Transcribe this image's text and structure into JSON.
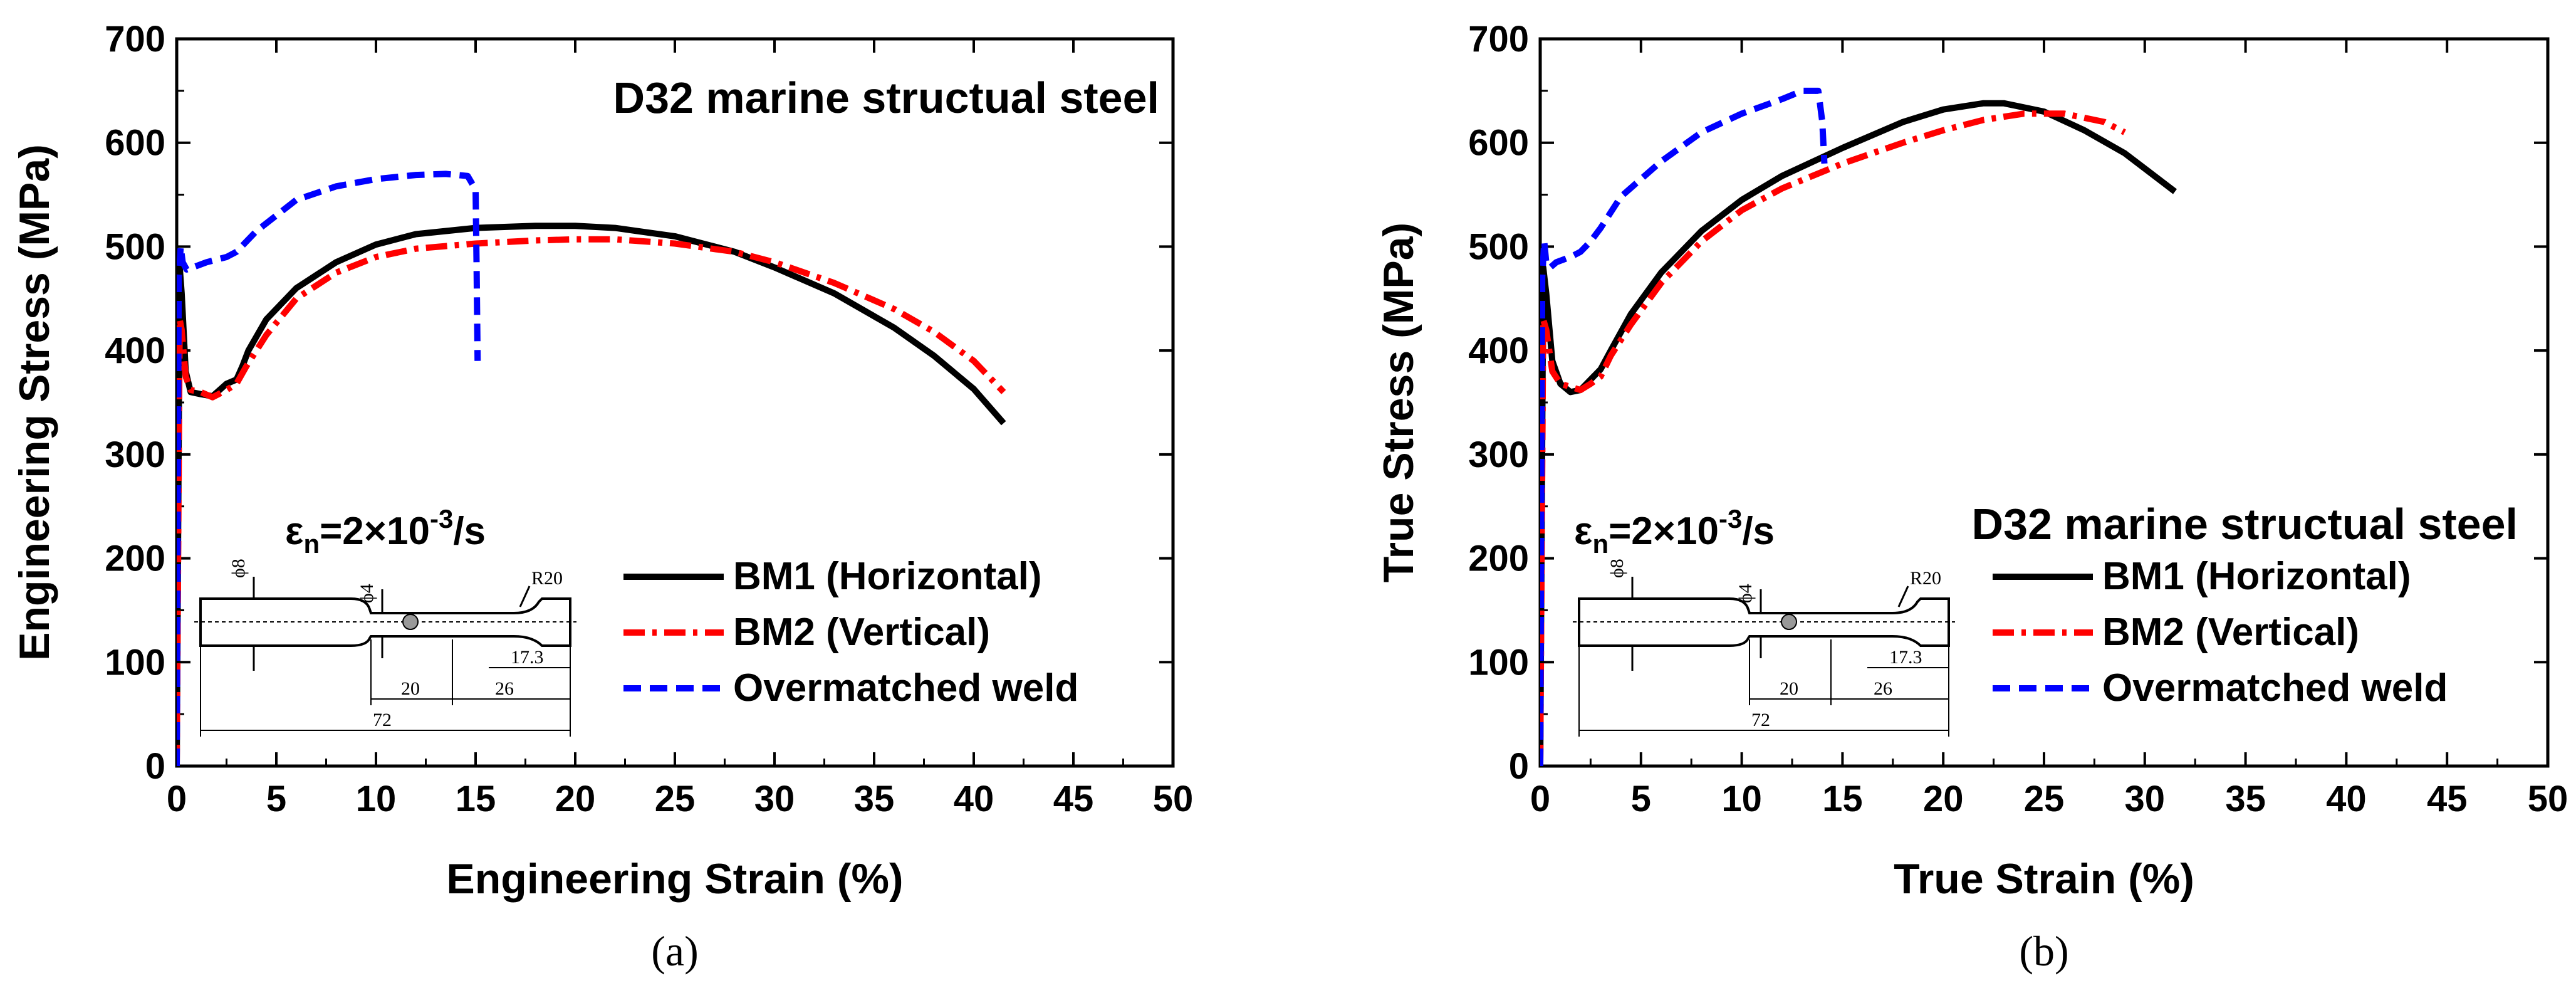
{
  "chart_data": [
    {
      "type": "line",
      "panel_label": "(a)",
      "title": "D32 marine structual steel",
      "xlabel": "Engineering Strain (%)",
      "ylabel": "Engineering Stress (MPa)",
      "xlim": [
        0,
        50
      ],
      "ylim": [
        0,
        700
      ],
      "xticks": [
        0,
        5,
        10,
        15,
        20,
        25,
        30,
        35,
        40,
        45,
        50
      ],
      "yticks": [
        0,
        100,
        200,
        300,
        400,
        500,
        600,
        700
      ],
      "strain_rate": {
        "base": "ε",
        "sub": "n",
        "mid": "=2×10",
        "sup": "-3",
        "tail": "/s"
      },
      "specimen_dims": {
        "d1": "ϕ8",
        "d2": "ϕ4",
        "radius": "R20",
        "l1": "17.3",
        "l2": "20",
        "l3": "26",
        "l4": "72"
      },
      "series": [
        {
          "name": "BM1 (Horizontal)",
          "color": "#000000",
          "dash": "solid",
          "x": [
            0,
            0.15,
            0.25,
            0.45,
            0.7,
            1.2,
            1.8,
            2.5,
            3.0,
            3.3,
            3.6,
            4.5,
            6,
            8,
            10,
            12,
            15,
            18,
            20,
            22,
            25,
            28,
            30,
            33,
            36,
            38,
            40,
            41.5
          ],
          "y": [
            0,
            480,
            455,
            380,
            360,
            358,
            356,
            368,
            372,
            385,
            400,
            430,
            460,
            485,
            502,
            512,
            518,
            520,
            520,
            518,
            510,
            495,
            480,
            455,
            422,
            395,
            363,
            330
          ]
        },
        {
          "name": "BM2 (Vertical)",
          "color": "#ff0000",
          "dash": "dashdot",
          "x": [
            0,
            0.15,
            0.25,
            0.45,
            0.7,
            1.2,
            1.8,
            2.5,
            3.0,
            3.5,
            4.5,
            6,
            8,
            10,
            12,
            15,
            18,
            20,
            22,
            25,
            28,
            30,
            33,
            36,
            38,
            40,
            41.5
          ],
          "y": [
            0,
            430,
            420,
            375,
            362,
            360,
            355,
            362,
            368,
            385,
            415,
            450,
            475,
            490,
            498,
            503,
            506,
            507,
            507,
            503,
            495,
            485,
            465,
            440,
            418,
            390,
            360
          ]
        },
        {
          "name": "Overmatched weld",
          "color": "#0000ff",
          "dash": "dashed",
          "x": [
            0,
            0.1,
            0.2,
            0.3,
            0.5,
            0.8,
            1.5,
            2.5,
            3,
            4,
            6,
            8,
            10,
            12,
            13.5,
            14.6,
            15.0,
            15.05,
            15.1
          ],
          "y": [
            0,
            470,
            500,
            485,
            478,
            480,
            485,
            490,
            495,
            515,
            545,
            558,
            565,
            569,
            570,
            568,
            555,
            480,
            390
          ]
        }
      ]
    },
    {
      "type": "line",
      "panel_label": "(b)",
      "title": "D32 marine structual steel",
      "xlabel": "True Strain (%)",
      "ylabel": "True Stress (MPa)",
      "xlim": [
        0,
        50
      ],
      "ylim": [
        0,
        700
      ],
      "xticks": [
        0,
        5,
        10,
        15,
        20,
        25,
        30,
        35,
        40,
        45,
        50
      ],
      "yticks": [
        0,
        100,
        200,
        300,
        400,
        500,
        600,
        700
      ],
      "strain_rate": {
        "base": "ε",
        "sub": "n",
        "mid": "=2×10",
        "sup": "-3",
        "tail": "/s"
      },
      "specimen_dims": {
        "d1": "ϕ8",
        "d2": "ϕ4",
        "radius": "R20",
        "l1": "17.3",
        "l2": "20",
        "l3": "26",
        "l4": "72"
      },
      "series": [
        {
          "name": "BM1 (Horizontal)",
          "color": "#000000",
          "dash": "solid",
          "x": [
            0,
            0.15,
            0.3,
            0.6,
            1.0,
            1.5,
            2.0,
            2.5,
            3.0,
            3.5,
            4.5,
            6,
            8,
            10,
            12,
            15,
            18,
            20,
            22,
            23,
            25,
            27,
            29,
            31.5
          ],
          "y": [
            0,
            480,
            455,
            390,
            368,
            360,
            362,
            372,
            382,
            400,
            435,
            475,
            515,
            545,
            568,
            595,
            620,
            632,
            638,
            638,
            630,
            612,
            590,
            553
          ]
        },
        {
          "name": "BM2 (Vertical)",
          "color": "#ff0000",
          "dash": "dashdot",
          "x": [
            0,
            0.15,
            0.3,
            0.6,
            1.0,
            1.5,
            2.0,
            2.5,
            3.0,
            3.5,
            4.5,
            6,
            8,
            10,
            12,
            15,
            18,
            20,
            22,
            24,
            26,
            28,
            29
          ],
          "y": [
            0,
            430,
            420,
            380,
            368,
            365,
            362,
            368,
            375,
            395,
            425,
            465,
            505,
            535,
            556,
            580,
            600,
            612,
            622,
            628,
            628,
            620,
            610
          ]
        },
        {
          "name": "Overmatched weld",
          "color": "#0000ff",
          "dash": "dashed",
          "x": [
            0,
            0.1,
            0.2,
            0.3,
            0.5,
            0.8,
            1.5,
            2.0,
            2.5,
            3.0,
            4,
            6,
            8,
            10,
            12,
            13,
            13.8,
            14.0,
            14.1
          ],
          "y": [
            0,
            470,
            505,
            485,
            480,
            485,
            490,
            495,
            505,
            518,
            548,
            582,
            610,
            628,
            642,
            650,
            650,
            620,
            580
          ]
        }
      ]
    }
  ]
}
